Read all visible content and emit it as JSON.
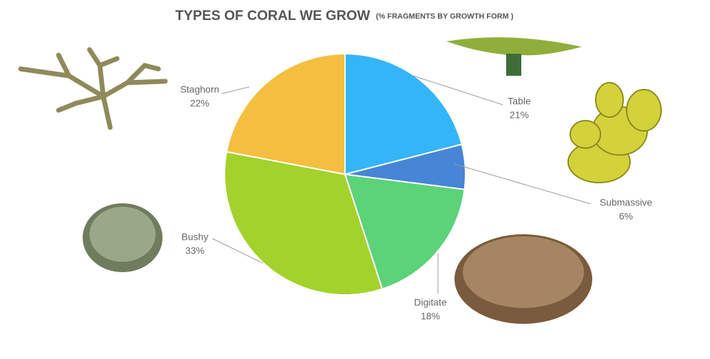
{
  "chart_data": {
    "type": "pie",
    "title": "TYPES OF CORAL WE GROW",
    "subtitle": "(% FRAGMENTS BY GROWTH FORM )",
    "categories": [
      "Table",
      "Submassive",
      "Digitate",
      "Bushy",
      "Staghorn"
    ],
    "values": [
      21,
      6,
      18,
      33,
      22
    ],
    "value_labels": [
      "21%",
      "6%",
      "18%",
      "33%",
      "22%"
    ],
    "colors": [
      "#33b5f8",
      "#4785d6",
      "#5cd279",
      "#a4d22c",
      "#f4bf40"
    ]
  }
}
